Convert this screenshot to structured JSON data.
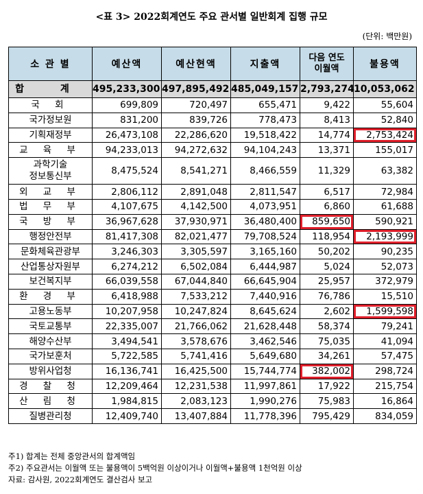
{
  "title": "<표 3> 2022회계연도 주요 관서별 일반회계 집행 규모",
  "unit": "(단위: 백만원)",
  "headers": {
    "dept": "소 관 별",
    "budget": "예산액",
    "current_budget": "예산현액",
    "expenditure": "지출액",
    "carryover_line1": "다음 연도",
    "carryover_line2": "이월액",
    "unused": "불용액"
  },
  "total": {
    "name": "합 계",
    "budget": "495,233,300",
    "current_budget": "497,895,492",
    "expenditure": "485,049,157",
    "carryover": "2,793,274",
    "unused": "10,053,062"
  },
  "rows": [
    {
      "name": "국 회",
      "budget": "699,809",
      "current_budget": "720,497",
      "expenditure": "655,471",
      "carryover": "9,422",
      "unused": "55,604"
    },
    {
      "name": "국가정보원",
      "budget": "831,200",
      "current_budget": "839,726",
      "expenditure": "778,473",
      "carryover": "8,413",
      "unused": "52,840"
    },
    {
      "name": "기획재정부",
      "budget": "26,473,108",
      "current_budget": "22,286,620",
      "expenditure": "19,518,422",
      "carryover": "14,774",
      "unused": "2,753,424"
    },
    {
      "name": "교 육 부",
      "budget": "94,233,013",
      "current_budget": "94,272,632",
      "expenditure": "94,104,243",
      "carryover": "13,371",
      "unused": "155,017"
    },
    {
      "name": "과학기술",
      "name2": "정보통신부",
      "budget": "8,475,524",
      "current_budget": "8,541,271",
      "expenditure": "8,466,559",
      "carryover": "11,329",
      "unused": "63,382"
    },
    {
      "name": "외 교 부",
      "budget": "2,806,112",
      "current_budget": "2,891,048",
      "expenditure": "2,811,547",
      "carryover": "6,517",
      "unused": "72,984"
    },
    {
      "name": "법 무 부",
      "budget": "4,107,675",
      "current_budget": "4,142,500",
      "expenditure": "4,073,951",
      "carryover": "6,860",
      "unused": "61,688"
    },
    {
      "name": "국 방 부",
      "budget": "36,967,628",
      "current_budget": "37,930,971",
      "expenditure": "36,480,400",
      "carryover": "859,650",
      "unused": "590,921"
    },
    {
      "name": "행정안전부",
      "budget": "81,417,308",
      "current_budget": "82,021,477",
      "expenditure": "79,708,524",
      "carryover": "118,954",
      "unused": "2,193,999"
    },
    {
      "name": "문화체육관광부",
      "budget": "3,246,303",
      "current_budget": "3,305,597",
      "expenditure": "3,165,160",
      "carryover": "50,202",
      "unused": "90,235"
    },
    {
      "name": "산업통상자원부",
      "budget": "6,274,212",
      "current_budget": "6,502,084",
      "expenditure": "6,444,987",
      "carryover": "5,024",
      "unused": "52,073"
    },
    {
      "name": "보건복지부",
      "budget": "66,039,558",
      "current_budget": "67,044,840",
      "expenditure": "66,645,904",
      "carryover": "25,957",
      "unused": "372,979"
    },
    {
      "name": "환 경 부",
      "budget": "6,418,988",
      "current_budget": "7,533,212",
      "expenditure": "7,440,916",
      "carryover": "76,786",
      "unused": "15,510"
    },
    {
      "name": "고용노동부",
      "budget": "10,207,958",
      "current_budget": "10,247,824",
      "expenditure": "8,645,624",
      "carryover": "2,602",
      "unused": "1,599,598"
    },
    {
      "name": "국토교통부",
      "budget": "22,335,007",
      "current_budget": "21,766,062",
      "expenditure": "21,628,448",
      "carryover": "58,374",
      "unused": "79,241"
    },
    {
      "name": "해양수산부",
      "budget": "3,494,541",
      "current_budget": "3,578,676",
      "expenditure": "3,462,546",
      "carryover": "75,035",
      "unused": "41,094"
    },
    {
      "name": "국가보훈처",
      "budget": "5,722,585",
      "current_budget": "5,741,416",
      "expenditure": "5,649,680",
      "carryover": "34,261",
      "unused": "57,475"
    },
    {
      "name": "방위사업청",
      "budget": "16,136,741",
      "current_budget": "16,425,500",
      "expenditure": "15,744,774",
      "carryover": "382,002",
      "unused": "298,724"
    },
    {
      "name": "경 찰 청",
      "budget": "12,209,464",
      "current_budget": "12,231,538",
      "expenditure": "11,997,861",
      "carryover": "17,922",
      "unused": "215,754"
    },
    {
      "name": "산 림 청",
      "budget": "1,984,815",
      "current_budget": "2,083,123",
      "expenditure": "1,990,276",
      "carryover": "75,983",
      "unused": "16,864"
    },
    {
      "name": "질병관리청",
      "budget": "12,409,740",
      "current_budget": "13,407,884",
      "expenditure": "11,778,396",
      "carryover": "795,429",
      "unused": "834,059"
    }
  ],
  "notes": [
    "주1) 합계는 전체 중앙관서의 합계액임",
    "주2) 주요관서는 이월액 또는 불용액이 5백억원 이상이거나 이월액+불용액 1천억원 이상",
    "자료: 감사원, 2022회계연도 결산검사 보고"
  ],
  "highlight_color": "#e0202c",
  "header_bg": "#c6dce8",
  "total_bg": "#d9d9d9"
}
